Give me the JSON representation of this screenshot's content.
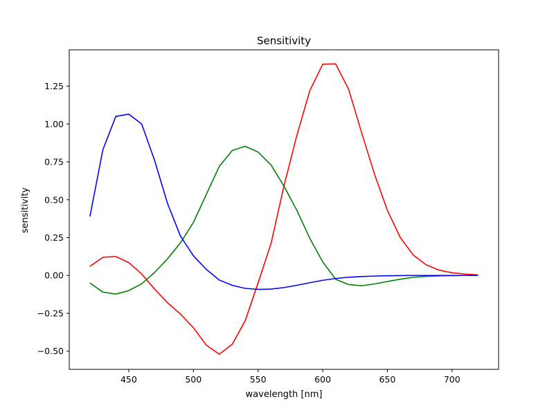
{
  "chart_data": {
    "type": "line",
    "title": "Sensitivity",
    "xlabel": "wavelength [nm]",
    "ylabel": "sensitivity",
    "xlim": [
      404,
      736
    ],
    "ylim": [
      -0.62,
      1.49
    ],
    "xticks": [
      450,
      500,
      550,
      600,
      650,
      700
    ],
    "yticks": [
      -0.5,
      -0.25,
      0.0,
      0.25,
      0.5,
      0.75,
      1.0,
      1.25
    ],
    "grid": false,
    "x": [
      420,
      430,
      440,
      450,
      460,
      470,
      480,
      490,
      500,
      510,
      520,
      530,
      540,
      550,
      560,
      570,
      580,
      590,
      600,
      610,
      620,
      630,
      640,
      650,
      660,
      670,
      680,
      690,
      700,
      710,
      720
    ],
    "series": [
      {
        "color": "#ff0000",
        "values": [
          0.06,
          0.12,
          0.125,
          0.085,
          0.01,
          -0.09,
          -0.18,
          -0.255,
          -0.345,
          -0.46,
          -0.52,
          -0.455,
          -0.3,
          -0.05,
          0.21,
          0.59,
          0.925,
          1.22,
          1.395,
          1.397,
          1.23,
          0.945,
          0.67,
          0.43,
          0.25,
          0.135,
          0.07,
          0.035,
          0.018,
          0.009,
          0.004
        ]
      },
      {
        "color": "#008000",
        "values": [
          -0.05,
          -0.11,
          -0.123,
          -0.1,
          -0.055,
          0.02,
          0.11,
          0.215,
          0.35,
          0.535,
          0.72,
          0.825,
          0.853,
          0.815,
          0.73,
          0.59,
          0.43,
          0.245,
          0.09,
          -0.025,
          -0.06,
          -0.068,
          -0.056,
          -0.04,
          -0.025,
          -0.012,
          -0.006,
          -0.003,
          -0.001,
          0.0,
          0.0
        ]
      },
      {
        "color": "#0000ff",
        "values": [
          0.39,
          0.83,
          1.05,
          1.065,
          1.0,
          0.76,
          0.475,
          0.26,
          0.13,
          0.04,
          -0.03,
          -0.065,
          -0.085,
          -0.092,
          -0.09,
          -0.08,
          -0.065,
          -0.048,
          -0.032,
          -0.02,
          -0.012,
          -0.007,
          -0.004,
          -0.002,
          -0.001,
          0.0,
          0.0,
          0.0,
          0.0,
          0.0,
          0.0
        ]
      }
    ]
  }
}
